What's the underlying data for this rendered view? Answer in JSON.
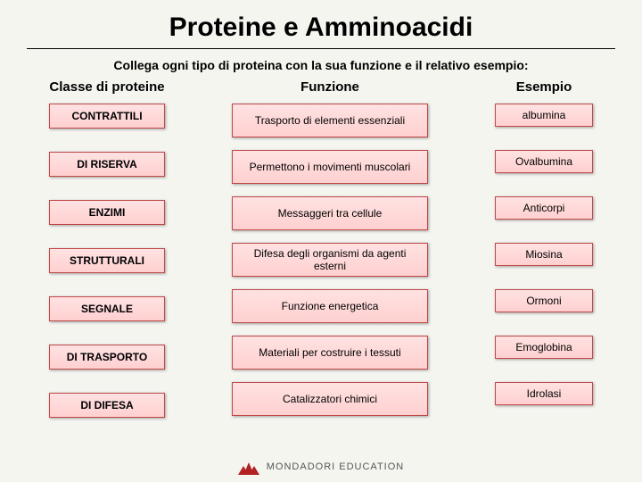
{
  "title": "Proteine e Amminoacidi",
  "subtitle": "Collega ogni tipo di proteina con la sua funzione e il relativo esempio:",
  "headers": {
    "left": "Classe di proteine",
    "center": "Funzione",
    "right": "Esempio"
  },
  "left_boxes": [
    "CONTRATTILI",
    "DI RISERVA",
    "ENZIMI",
    "STRUTTURALI",
    "SEGNALE",
    "DI TRASPORTO",
    "DI DIFESA"
  ],
  "center_boxes": [
    "Trasporto di elementi essenziali",
    "Permettono i movimenti muscolari",
    "Messaggeri tra cellule",
    "Difesa degli organismi da agenti esterni",
    "Funzione energetica",
    "Materiali per costruire i tessuti",
    "Catalizzatori chimici"
  ],
  "right_boxes": [
    "albumina",
    "Ovalbumina",
    "Anticorpi",
    "Miosina",
    "Ormoni",
    "Emoglobina",
    "Idrolasi"
  ],
  "footer": "MONDADORI EDUCATION",
  "style": {
    "background": "#f5f5f0",
    "box_fill_top": "#ffe2e2",
    "box_fill_bottom": "#ffd0d0",
    "box_border": "#c04848",
    "title_fontsize": 30,
    "subtitle_fontsize": 14,
    "header_fontsize": 15,
    "box_fontsize": 12,
    "logo_color": "#b22222"
  }
}
